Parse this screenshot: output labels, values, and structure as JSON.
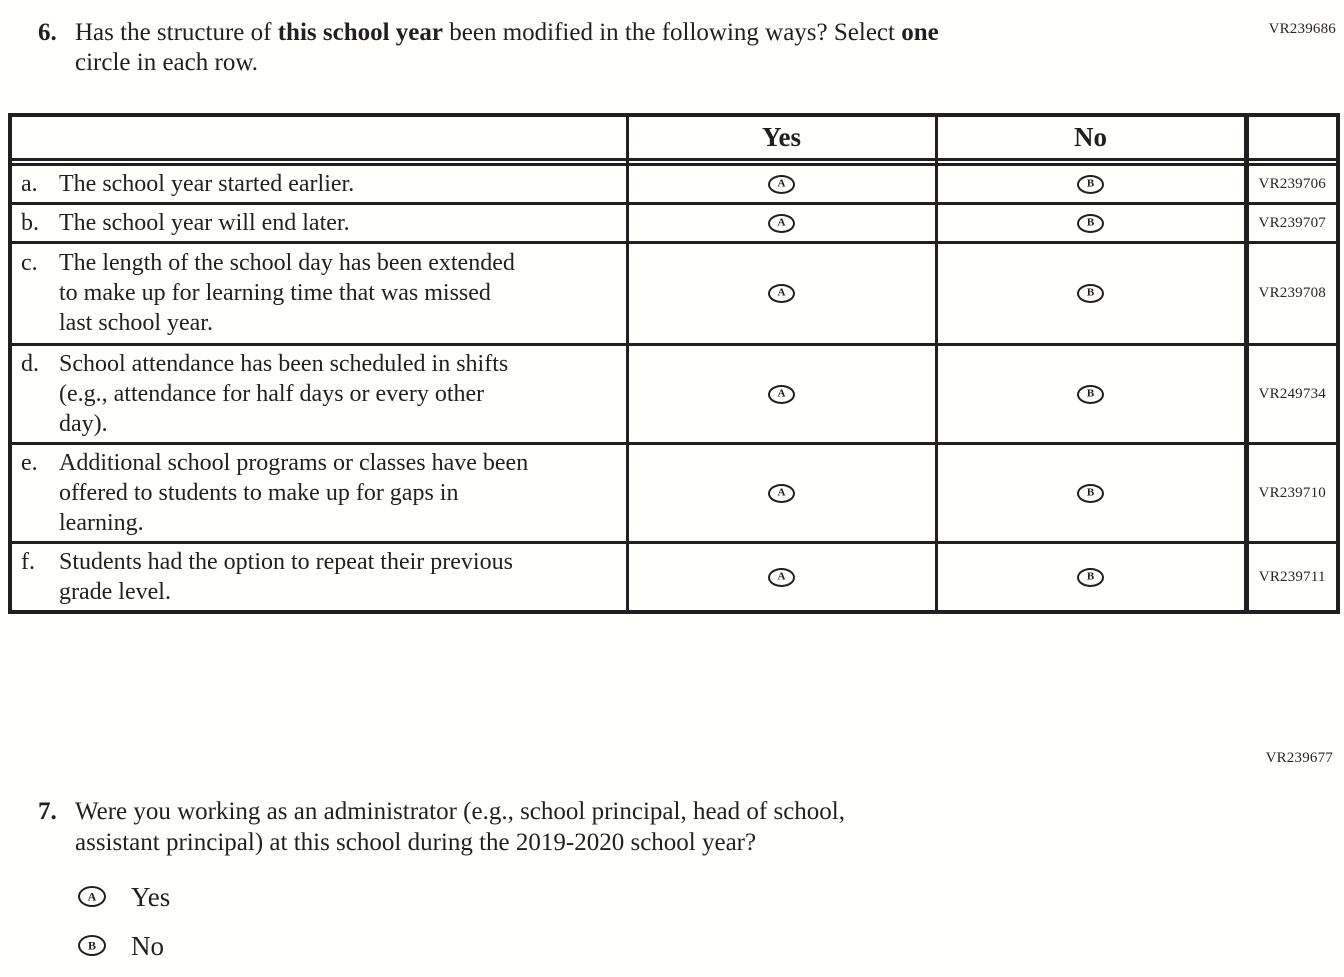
{
  "colors": {
    "text": "#231f20",
    "background": "#fffffc",
    "border": "#231f20"
  },
  "vr_labels": {
    "top": "VR239686",
    "middle": "VR239677"
  },
  "question6": {
    "number": "6.",
    "line1_seg1": "Has the structure of ",
    "line1_bold1": "this school year",
    "line1_seg2": " been modified in the following ways? Select ",
    "line1_bold2": "one",
    "line2": "circle in each row."
  },
  "table": {
    "header": {
      "statement": "",
      "yes": "Yes",
      "no": "No",
      "code": ""
    },
    "option_letters": {
      "yes": "A",
      "no": "B"
    },
    "rows": [
      {
        "letter": "a.",
        "text": "The school year started earlier.",
        "vr": "VR239706"
      },
      {
        "letter": "b.",
        "text": "The school year will end later.",
        "vr": "VR239707"
      },
      {
        "letter": "c.",
        "text": "The length of the school day has been extended to make up for learning time that was missed last school year.",
        "vr": "VR239708"
      },
      {
        "letter": "d.",
        "text": "School attendance has been scheduled in shifts (e.g., attendance for half days or every other day).",
        "vr": "VR249734"
      },
      {
        "letter": "e.",
        "text": "Additional school programs or classes have been offered to students to make up for gaps in learning.",
        "vr": "VR239710"
      },
      {
        "letter": "f.",
        "text": "Students had the option to repeat their previous grade level.",
        "vr": "VR239711"
      }
    ]
  },
  "question7": {
    "number": "7.",
    "line1": "Were you working as an administrator (e.g., school principal, head of school,",
    "line2": "assistant principal) at this school during the 2019-2020 school year?",
    "options": [
      {
        "letter": "A",
        "label": "Yes"
      },
      {
        "letter": "B",
        "label": "No"
      }
    ]
  }
}
